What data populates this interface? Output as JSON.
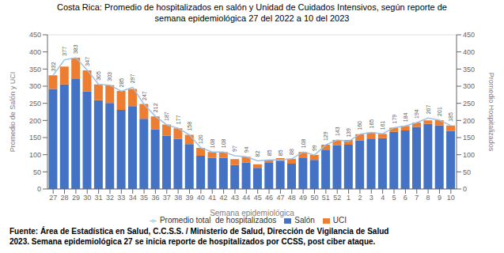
{
  "chart_data": {
    "type": "bar",
    "title": "Costa Rica: Promedio de hospitalizados en salón y Unidad de Cuidados Intensivos, según reporte de",
    "subtitle": "semana epidemiológica 27 del 2022 a 10 del 2023",
    "xlabel": "Semana epidemiológica",
    "ylabel": "Promedio de Salón y UCI",
    "y2label": "Promedio Hospitalizados",
    "categories": [
      "27",
      "28",
      "29",
      "30",
      "31",
      "32",
      "33",
      "34",
      "35",
      "36",
      "37",
      "38",
      "39",
      "40",
      "41",
      "42",
      "43",
      "44",
      "45",
      "46",
      "47",
      "48",
      "49",
      "50",
      "51",
      "52",
      "1",
      "2",
      "3",
      "4",
      "5",
      "6",
      "7",
      "8",
      "9",
      "10"
    ],
    "series": [
      {
        "name": "Salón",
        "type": "bar",
        "color": "#4472C4",
        "values": [
          292,
          305,
          321,
          285,
          259,
          251,
          231,
          242,
          205,
          174,
          156,
          146,
          131,
          97,
          91,
          91,
          70,
          77,
          62,
          76,
          81,
          74,
          90,
          85,
          113,
          128,
          129,
          142,
          147,
          148,
          167,
          171,
          181,
          190,
          186,
          169
        ]
      },
      {
        "name": "UCI",
        "type": "bar",
        "color": "#ED7D31",
        "values": [
          40,
          52,
          62,
          61,
          46,
          52,
          55,
          50,
          43,
          38,
          32,
          31,
          27,
          23,
          17,
          17,
          17,
          17,
          10,
          9,
          9,
          14,
          18,
          14,
          16,
          15,
          14,
          18,
          18,
          13,
          12,
          13,
          13,
          10,
          15,
          16
        ]
      },
      {
        "name": "Promedio total  de hospitalizados",
        "type": "line",
        "axis": "y2",
        "color": "#9DC3E6",
        "data_labels": true,
        "values": [
          332,
          377,
          383,
          347,
          305,
          303,
          285,
          297,
          247,
          212,
          187,
          177,
          158,
          120,
          108,
          108,
          97,
          94,
          82,
          85,
          85,
          88,
          108,
          99,
          129,
          143,
          139,
          160,
          165,
          161,
          179,
          184,
          194,
          207,
          201,
          185
        ]
      }
    ],
    "stacked": true,
    "ylim": [
      0,
      450
    ],
    "yticks": [
      0,
      50,
      100,
      150,
      200,
      250,
      300,
      350,
      400,
      450
    ],
    "y2lim": [
      0,
      450
    ],
    "y2ticks": [
      0,
      50,
      100,
      150,
      200,
      250,
      300,
      350,
      400,
      450
    ],
    "grid": true,
    "legend": "bottom",
    "annotations": [
      "Fuente: Área de Estadística en Salud, C.C.S.S. / Ministerio de Salud, Dirección de Vigilancia de Salud",
      "2023. Semana epidemiológica 27 se inicia reporte de hospitalizados por CCSS, post ciber ataque."
    ]
  }
}
